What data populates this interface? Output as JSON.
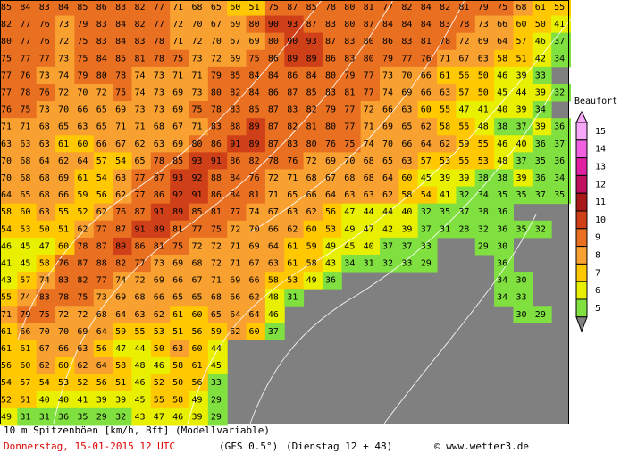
{
  "map": {
    "rows": [
      [
        85,
        84,
        83,
        84,
        85,
        86,
        83,
        82,
        77,
        71,
        68,
        65,
        60,
        51,
        75,
        87,
        85,
        78,
        80,
        81,
        77,
        82,
        84,
        82,
        81,
        79,
        75,
        68,
        61,
        55,
        47,
        36
      ],
      [
        82,
        77,
        76,
        73,
        79,
        83,
        84,
        82,
        77,
        72,
        70,
        67,
        69,
        80,
        90,
        93,
        87,
        83,
        80,
        87,
        84,
        84,
        84,
        83,
        78,
        73,
        66,
        60,
        50,
        41,
        32
      ],
      [
        80,
        77,
        76,
        72,
        75,
        83,
        84,
        83,
        78,
        71,
        72,
        70,
        67,
        69,
        80,
        90,
        93,
        87,
        83,
        80,
        86,
        83,
        81,
        78,
        72,
        69,
        64,
        57,
        46,
        37,
        30
      ],
      [
        75,
        77,
        77,
        73,
        75,
        84,
        85,
        81,
        78,
        75,
        73,
        72,
        69,
        75,
        86,
        89,
        89,
        86,
        83,
        80,
        79,
        77,
        76,
        71,
        67,
        63,
        58,
        51,
        42,
        34,
        29
      ],
      [
        77,
        76,
        73,
        74,
        79,
        80,
        78,
        74,
        73,
        71,
        71,
        79,
        85,
        84,
        84,
        86,
        84,
        80,
        79,
        77,
        73,
        70,
        66,
        61,
        56,
        50,
        46,
        39,
        33
      ],
      [
        77,
        78,
        76,
        72,
        70,
        72,
        75,
        74,
        73,
        69,
        73,
        80,
        82,
        84,
        86,
        87,
        85,
        83,
        81,
        77,
        74,
        69,
        66,
        63,
        57,
        50,
        45,
        44,
        39,
        32
      ],
      [
        76,
        75,
        73,
        70,
        66,
        65,
        69,
        73,
        73,
        69,
        75,
        78,
        83,
        85,
        87,
        83,
        82,
        79,
        77,
        72,
        66,
        63,
        60,
        55,
        47,
        41,
        40,
        39,
        34
      ],
      [
        71,
        71,
        68,
        65,
        63,
        65,
        71,
        71,
        68,
        67,
        71,
        83,
        88,
        89,
        87,
        82,
        81,
        80,
        77,
        71,
        69,
        65,
        62,
        58,
        55,
        48,
        38,
        37,
        39,
        36,
        30
      ],
      [
        63,
        63,
        63,
        61,
        60,
        66,
        67,
        62,
        63,
        69,
        80,
        86,
        91,
        89,
        87,
        83,
        80,
        76,
        75,
        74,
        70,
        66,
        64,
        62,
        59,
        55,
        46,
        40,
        36,
        37,
        37,
        33,
        29
      ],
      [
        70,
        68,
        64,
        62,
        64,
        57,
        54,
        65,
        78,
        85,
        93,
        91,
        86,
        82,
        78,
        76,
        72,
        69,
        70,
        68,
        65,
        63,
        57,
        53,
        55,
        53,
        48,
        37,
        35,
        36,
        34,
        29
      ],
      [
        70,
        68,
        68,
        69,
        61,
        54,
        63,
        77,
        87,
        93,
        92,
        88,
        84,
        76,
        72,
        71,
        68,
        67,
        68,
        68,
        64,
        60,
        45,
        39,
        39,
        38,
        38,
        39,
        36,
        34,
        33
      ],
      [
        64,
        65,
        68,
        66,
        59,
        56,
        62,
        77,
        86,
        92,
        91,
        86,
        84,
        81,
        71,
        65,
        66,
        64,
        63,
        63,
        62,
        58,
        54,
        41,
        32,
        34,
        35,
        35,
        37,
        35,
        34,
        31
      ],
      [
        58,
        60,
        63,
        55,
        52,
        62,
        76,
        87,
        91,
        89,
        85,
        81,
        77,
        74,
        67,
        63,
        62,
        56,
        47,
        44,
        44,
        40,
        32,
        35,
        37,
        38,
        36
      ],
      [
        54,
        53,
        50,
        51,
        62,
        77,
        87,
        91,
        89,
        81,
        77,
        75,
        72,
        70,
        66,
        62,
        60,
        53,
        49,
        47,
        42,
        39,
        37,
        31,
        28,
        32,
        36,
        35,
        32
      ],
      [
        46,
        45,
        47,
        60,
        78,
        87,
        89,
        86,
        81,
        75,
        72,
        72,
        71,
        69,
        64,
        61,
        59,
        49,
        45,
        40,
        37,
        37,
        33,
        null,
        null,
        29,
        30
      ],
      [
        41,
        45,
        58,
        76,
        87,
        88,
        82,
        77,
        73,
        69,
        68,
        72,
        71,
        67,
        63,
        61,
        58,
        43,
        34,
        31,
        32,
        33,
        29,
        null,
        null,
        null,
        36
      ],
      [
        43,
        57,
        74,
        83,
        82,
        77,
        74,
        72,
        69,
        66,
        67,
        71,
        69,
        66,
        58,
        53,
        49,
        36,
        null,
        null,
        null,
        null,
        null,
        null,
        null,
        null,
        34,
        30
      ],
      [
        55,
        74,
        83,
        78,
        75,
        73,
        69,
        68,
        66,
        65,
        65,
        68,
        66,
        62,
        48,
        31,
        null,
        null,
        null,
        null,
        null,
        null,
        null,
        null,
        null,
        null,
        34,
        33
      ],
      [
        71,
        79,
        75,
        72,
        72,
        68,
        64,
        63,
        62,
        61,
        60,
        65,
        64,
        64,
        46,
        null,
        null,
        null,
        null,
        null,
        null,
        null,
        null,
        null,
        null,
        null,
        null,
        30,
        29
      ],
      [
        61,
        66,
        70,
        70,
        69,
        64,
        59,
        55,
        53,
        51,
        56,
        59,
        62,
        60,
        37
      ],
      [
        61,
        61,
        67,
        66,
        63,
        56,
        47,
        44,
        50,
        63,
        60,
        44
      ],
      [
        56,
        60,
        62,
        60,
        62,
        64,
        58,
        48,
        46,
        58,
        61,
        45
      ],
      [
        54,
        57,
        54,
        53,
        52,
        56,
        51,
        46,
        52,
        50,
        56,
        33
      ],
      [
        52,
        51,
        40,
        40,
        41,
        39,
        39,
        45,
        55,
        58,
        49,
        29
      ],
      [
        49,
        31,
        31,
        36,
        35,
        29,
        32,
        43,
        47,
        46,
        39,
        29
      ]
    ]
  },
  "legend": {
    "title": "Beaufort",
    "levels": [
      {
        "value": 15,
        "color": "#f8a8f8"
      },
      {
        "value": 14,
        "color": "#f060e0"
      },
      {
        "value": 13,
        "color": "#e020a0"
      },
      {
        "value": 12,
        "color": "#c01060"
      },
      {
        "value": 11,
        "color": "#a81818"
      },
      {
        "value": 10,
        "color": "#d04018"
      },
      {
        "value": 9,
        "color": "#e87020"
      },
      {
        "value": 8,
        "color": "#f8a030"
      },
      {
        "value": 7,
        "color": "#ffc800"
      },
      {
        "value": 6,
        "color": "#e8f000"
      },
      {
        "value": 5,
        "color": "#80e040"
      }
    ]
  },
  "footer": {
    "line1": "10 m Spitzenböen [km/h, Bft] (Modellvariable)",
    "date": "Donnerstag, 15-01-2015  12 UTC",
    "model": "(GFS 0.5°)",
    "run": "(Dienstag 12 + 48)",
    "credit": "© www.wetter3.de"
  }
}
